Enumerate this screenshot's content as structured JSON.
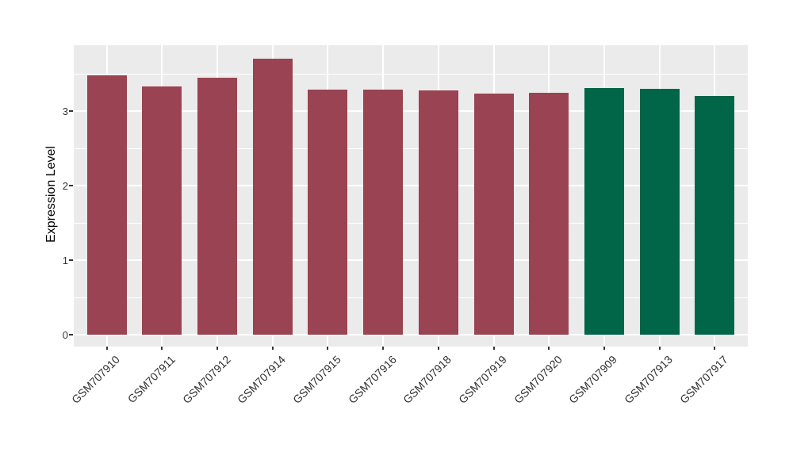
{
  "chart_data": {
    "type": "bar",
    "title": "",
    "xlabel": "",
    "ylabel": "Expression Level",
    "categories": [
      "GSM707910",
      "GSM707911",
      "GSM707912",
      "GSM707914",
      "GSM707915",
      "GSM707916",
      "GSM707918",
      "GSM707919",
      "GSM707920",
      "GSM707909",
      "GSM707913",
      "GSM707917"
    ],
    "values": [
      3.48,
      3.33,
      3.45,
      3.7,
      3.29,
      3.29,
      3.28,
      3.23,
      3.24,
      3.31,
      3.3,
      3.2
    ],
    "bar_colors": [
      "#9A4352",
      "#9A4352",
      "#9A4352",
      "#9A4352",
      "#9A4352",
      "#9A4352",
      "#9A4352",
      "#9A4352",
      "#9A4352",
      "#006647",
      "#006647",
      "#006647"
    ],
    "groups": [
      {
        "name": "maroon-group",
        "color": "#9A4352",
        "categories": [
          "GSM707910",
          "GSM707911",
          "GSM707912",
          "GSM707914",
          "GSM707915",
          "GSM707916",
          "GSM707918",
          "GSM707919",
          "GSM707920"
        ]
      },
      {
        "name": "green-group",
        "color": "#006647",
        "categories": [
          "GSM707909",
          "GSM707913",
          "GSM707917"
        ]
      }
    ],
    "yticks": [
      0,
      1,
      2,
      3
    ],
    "yminor_gridlines": [
      0.5,
      1.5,
      2.5,
      3.5
    ],
    "ylim": [
      -0.16,
      3.88
    ],
    "grid": "on",
    "legend": "none",
    "x_tick_angle_deg": 45,
    "panel_background": "#EBEBEB",
    "gridline_color": "#FFFFFF",
    "axis_text_color": "#333333"
  }
}
